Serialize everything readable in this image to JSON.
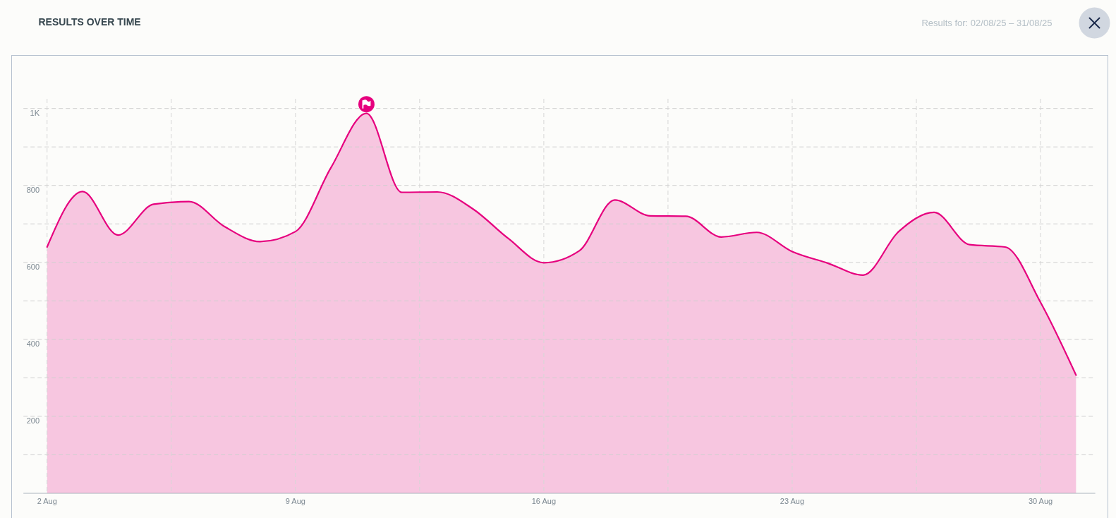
{
  "chart_data": {
    "type": "area",
    "title": "RESULTS OVER TIME",
    "subtitle": "Results for: 02/08/25 – 31/08/25",
    "x": [
      "--08-02",
      "--08-03",
      "--08-04",
      "--08-05",
      "--08-06",
      "--08-07",
      "--08-08",
      "--08-09",
      "--08-10",
      "--08-11",
      "--08-12",
      "--08-13",
      "--08-14",
      "--08-15",
      "--08-16",
      "--08-17",
      "--08-18",
      "--08-19",
      "--08-20",
      "--08-21",
      "--08-22",
      "--08-23",
      "--08-24",
      "--08-25",
      "--08-26",
      "--08-27",
      "--08-28",
      "--08-29",
      "--08-30",
      "--08-31"
    ],
    "series": [
      {
        "color": "#e6007e",
        "values": [
          640,
          784,
          671,
          751,
          758,
          693,
          654,
          680,
          846,
          987,
          782,
          783,
          739,
          662,
          599,
          630,
          762,
          721,
          720,
          666,
          678,
          628,
          598,
          567,
          680,
          730,
          646,
          640,
          496,
          307
        ]
      }
    ],
    "xlim": [
      "--08-01T08:00",
      "--08-31T13:00"
    ],
    "xticks": [
      {
        "value": "--08-02",
        "label": "2 Aug"
      },
      {
        "value": "--08-05T12:00",
        "label": null
      },
      {
        "value": "--08-09",
        "label": "9 Aug"
      },
      {
        "value": "--08-12T12:00",
        "label": null
      },
      {
        "value": "--08-16",
        "label": "16 Aug"
      },
      {
        "value": "--08-19T12:00",
        "label": null
      },
      {
        "value": "--08-23",
        "label": "23 Aug"
      },
      {
        "value": "--08-26T12:00",
        "label": null
      },
      {
        "value": "--08-30",
        "label": "30 Aug"
      }
    ],
    "ylim": [
      0,
      1025
    ],
    "yticks": [
      {
        "value": 100,
        "label": null
      },
      200,
      {
        "value": 300,
        "label": null
      },
      400,
      {
        "value": 500,
        "label": null
      },
      600,
      {
        "value": 700,
        "label": null
      },
      800,
      {
        "value": 900,
        "label": null
      },
      {
        "value": 1000,
        "label": "1K"
      }
    ],
    "grid": true
  }
}
